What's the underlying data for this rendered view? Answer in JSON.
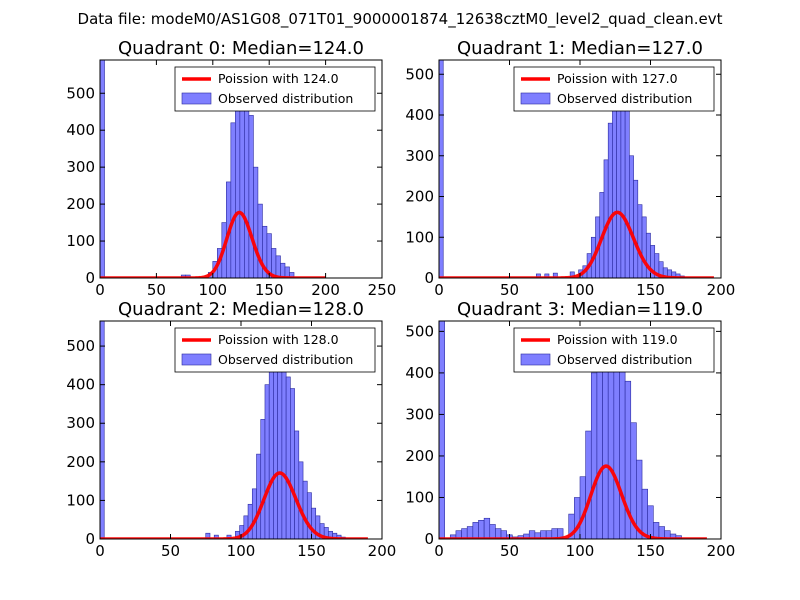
{
  "figure": {
    "suptitle": "Data file: modeM0/AS1G08_071T01_9000001874_12638cztM0_level2_quad_clean.evt"
  },
  "colors": {
    "hist_fill": "#7f7fff",
    "hist_edge": "#2a2a9f",
    "poisson_line": "#ff0000",
    "axes": "#000000",
    "background": "#ffffff"
  },
  "chart_data": [
    {
      "type": "bar",
      "title": "Quadrant 0: Median=124.0",
      "xlim": [
        0,
        250
      ],
      "ylim": [
        0,
        590
      ],
      "xticks": [
        "0",
        "50",
        "100",
        "150",
        "200",
        "250"
      ],
      "xtick_values": [
        0,
        50,
        100,
        150,
        200,
        250
      ],
      "yticks": [
        "0",
        "100",
        "200",
        "300",
        "400",
        "500"
      ],
      "ytick_values": [
        0,
        100,
        200,
        300,
        400,
        500
      ],
      "legend_position": "top-right",
      "series": [
        {
          "name": "Poission with 124.0",
          "kind": "line",
          "mean": 124.0,
          "scale": 4950,
          "x_range": [
            0,
            200
          ]
        },
        {
          "name": "Observed distribution",
          "kind": "histogram",
          "bin_width": 4,
          "bins": [
            [
              0,
              600
            ],
            [
              72,
              8
            ],
            [
              76,
              8
            ],
            [
              96,
              15
            ],
            [
              100,
              45
            ],
            [
              104,
              80
            ],
            [
              108,
              150
            ],
            [
              112,
              260
            ],
            [
              116,
              420
            ],
            [
              120,
              500
            ],
            [
              124,
              490
            ],
            [
              128,
              480
            ],
            [
              132,
              440
            ],
            [
              136,
              300
            ],
            [
              140,
              200
            ],
            [
              144,
              140
            ],
            [
              148,
              120
            ],
            [
              152,
              80
            ],
            [
              156,
              60
            ],
            [
              160,
              40
            ],
            [
              164,
              30
            ],
            [
              168,
              15
            ]
          ]
        }
      ]
    },
    {
      "type": "bar",
      "title": "Quadrant 1: Median=127.0",
      "xlim": [
        0,
        200
      ],
      "ylim": [
        0,
        535
      ],
      "xticks": [
        "0",
        "50",
        "100",
        "150",
        "200"
      ],
      "xtick_values": [
        0,
        50,
        100,
        150,
        200
      ],
      "yticks": [
        "0",
        "100",
        "200",
        "300",
        "400",
        "500"
      ],
      "ytick_values": [
        0,
        100,
        200,
        300,
        400,
        500
      ],
      "legend_position": "top-right",
      "series": [
        {
          "name": "Poission with 127.0",
          "kind": "line",
          "mean": 127.0,
          "scale": 4550,
          "x_range": [
            0,
            195
          ]
        },
        {
          "name": "Observed distribution",
          "kind": "histogram",
          "bin_width": 3,
          "bins": [
            [
              0,
              535
            ],
            [
              69,
              10
            ],
            [
              75,
              10
            ],
            [
              81,
              12
            ],
            [
              93,
              15
            ],
            [
              99,
              20
            ],
            [
              102,
              30
            ],
            [
              105,
              60
            ],
            [
              108,
              100
            ],
            [
              111,
              150
            ],
            [
              114,
              210
            ],
            [
              117,
              290
            ],
            [
              120,
              380
            ],
            [
              123,
              450
            ],
            [
              126,
              470
            ],
            [
              129,
              420
            ],
            [
              132,
              430
            ],
            [
              135,
              300
            ],
            [
              138,
              240
            ],
            [
              141,
              180
            ],
            [
              144,
              150
            ],
            [
              147,
              110
            ],
            [
              150,
              80
            ],
            [
              153,
              60
            ],
            [
              156,
              40
            ],
            [
              159,
              25
            ],
            [
              162,
              20
            ],
            [
              165,
              15
            ],
            [
              168,
              10
            ],
            [
              171,
              5
            ]
          ]
        }
      ]
    },
    {
      "type": "bar",
      "title": "Quadrant 2: Median=128.0",
      "xlim": [
        0,
        200
      ],
      "ylim": [
        0,
        565
      ],
      "xticks": [
        "0",
        "50",
        "100",
        "150",
        "200"
      ],
      "xtick_values": [
        0,
        50,
        100,
        150,
        200
      ],
      "yticks": [
        "0",
        "100",
        "200",
        "300",
        "400",
        "500"
      ],
      "ytick_values": [
        0,
        100,
        200,
        300,
        400,
        500
      ],
      "legend_position": "top-right",
      "series": [
        {
          "name": "Poission with 128.0",
          "kind": "line",
          "mean": 128.0,
          "scale": 4850,
          "x_range": [
            0,
            190
          ]
        },
        {
          "name": "Observed distribution",
          "kind": "histogram",
          "bin_width": 3,
          "bins": [
            [
              0,
              565
            ],
            [
              75,
              15
            ],
            [
              81,
              10
            ],
            [
              90,
              10
            ],
            [
              96,
              20
            ],
            [
              99,
              35
            ],
            [
              102,
              60
            ],
            [
              105,
              90
            ],
            [
              108,
              130
            ],
            [
              111,
              220
            ],
            [
              114,
              310
            ],
            [
              117,
              400
            ],
            [
              120,
              460
            ],
            [
              123,
              480
            ],
            [
              126,
              470
            ],
            [
              129,
              490
            ],
            [
              132,
              420
            ],
            [
              135,
              390
            ],
            [
              138,
              280
            ],
            [
              141,
              200
            ],
            [
              144,
              150
            ],
            [
              147,
              120
            ],
            [
              150,
              80
            ],
            [
              153,
              60
            ],
            [
              156,
              40
            ],
            [
              159,
              30
            ],
            [
              162,
              20
            ],
            [
              165,
              15
            ],
            [
              168,
              10
            ],
            [
              171,
              5
            ]
          ]
        }
      ]
    },
    {
      "type": "bar",
      "title": "Quadrant 3: Median=119.0",
      "xlim": [
        0,
        200
      ],
      "ylim": [
        0,
        525
      ],
      "xticks": [
        "0",
        "50",
        "100",
        "150",
        "200"
      ],
      "xtick_values": [
        0,
        50,
        100,
        150,
        200
      ],
      "yticks": [
        "0",
        "100",
        "200",
        "300",
        "400",
        "500"
      ],
      "ytick_values": [
        0,
        100,
        200,
        300,
        400,
        500
      ],
      "legend_position": "top-right",
      "series": [
        {
          "name": "Poission with 119.0",
          "kind": "line",
          "mean": 119.0,
          "scale": 4800,
          "x_range": [
            0,
            190
          ]
        },
        {
          "name": "Observed distribution",
          "kind": "histogram",
          "bin_width": 4,
          "bins": [
            [
              0,
              525
            ],
            [
              8,
              10
            ],
            [
              12,
              20
            ],
            [
              16,
              25
            ],
            [
              20,
              30
            ],
            [
              24,
              40
            ],
            [
              28,
              45
            ],
            [
              32,
              50
            ],
            [
              36,
              35
            ],
            [
              40,
              25
            ],
            [
              44,
              20
            ],
            [
              48,
              10
            ],
            [
              52,
              5
            ],
            [
              56,
              8
            ],
            [
              60,
              12
            ],
            [
              64,
              20
            ],
            [
              68,
              15
            ],
            [
              72,
              20
            ],
            [
              76,
              20
            ],
            [
              80,
              25
            ],
            [
              84,
              25
            ],
            [
              92,
              60
            ],
            [
              96,
              100
            ],
            [
              100,
              150
            ],
            [
              104,
              260
            ],
            [
              108,
              400
            ],
            [
              112,
              470
            ],
            [
              116,
              490
            ],
            [
              120,
              490
            ],
            [
              124,
              500
            ],
            [
              128,
              430
            ],
            [
              132,
              380
            ],
            [
              136,
              280
            ],
            [
              140,
              190
            ],
            [
              144,
              120
            ],
            [
              148,
              80
            ],
            [
              152,
              40
            ],
            [
              156,
              30
            ],
            [
              160,
              20
            ],
            [
              164,
              12
            ],
            [
              168,
              8
            ]
          ]
        }
      ]
    }
  ]
}
